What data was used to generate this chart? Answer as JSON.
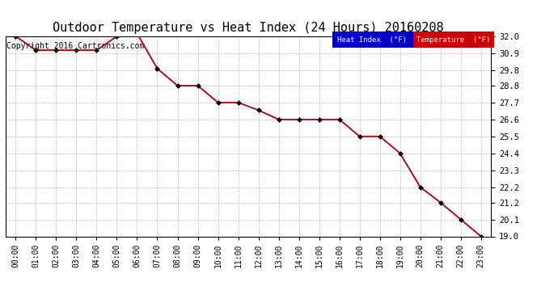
{
  "title": "Outdoor Temperature vs Heat Index (24 Hours) 20160208",
  "copyright": "Copyright 2016 Cartronics.com",
  "x_labels": [
    "00:00",
    "01:00",
    "02:00",
    "03:00",
    "04:00",
    "05:00",
    "06:00",
    "07:00",
    "08:00",
    "09:00",
    "10:00",
    "11:00",
    "12:00",
    "13:00",
    "14:00",
    "15:00",
    "16:00",
    "17:00",
    "18:00",
    "19:00",
    "20:00",
    "21:00",
    "22:00",
    "23:00"
  ],
  "temperature": [
    32.0,
    31.1,
    31.1,
    31.1,
    31.1,
    32.0,
    32.2,
    29.9,
    28.8,
    28.8,
    27.7,
    27.7,
    27.2,
    26.6,
    26.6,
    26.6,
    26.6,
    25.5,
    25.5,
    24.4,
    22.2,
    21.2,
    20.1,
    19.0
  ],
  "heat_index": [
    32.0,
    31.1,
    31.1,
    31.1,
    31.1,
    32.0,
    32.2,
    29.9,
    28.8,
    28.8,
    27.7,
    27.7,
    27.2,
    26.6,
    26.6,
    26.6,
    26.6,
    25.5,
    25.5,
    24.4,
    22.2,
    21.2,
    20.1,
    19.0
  ],
  "ylim": [
    19.0,
    32.0
  ],
  "yticks": [
    19.0,
    20.1,
    21.2,
    22.2,
    23.3,
    24.4,
    25.5,
    26.6,
    27.7,
    28.8,
    29.8,
    30.9,
    32.0
  ],
  "temp_color": "#cc0000",
  "heat_index_color": "#0000cc",
  "bg_color": "#ffffff",
  "grid_color": "#bbbbbb",
  "title_fontsize": 11,
  "copyright_fontsize": 7,
  "legend_heat_index_bg": "#0000cc",
  "legend_temp_bg": "#cc0000",
  "legend_text_color": "#ffffff"
}
